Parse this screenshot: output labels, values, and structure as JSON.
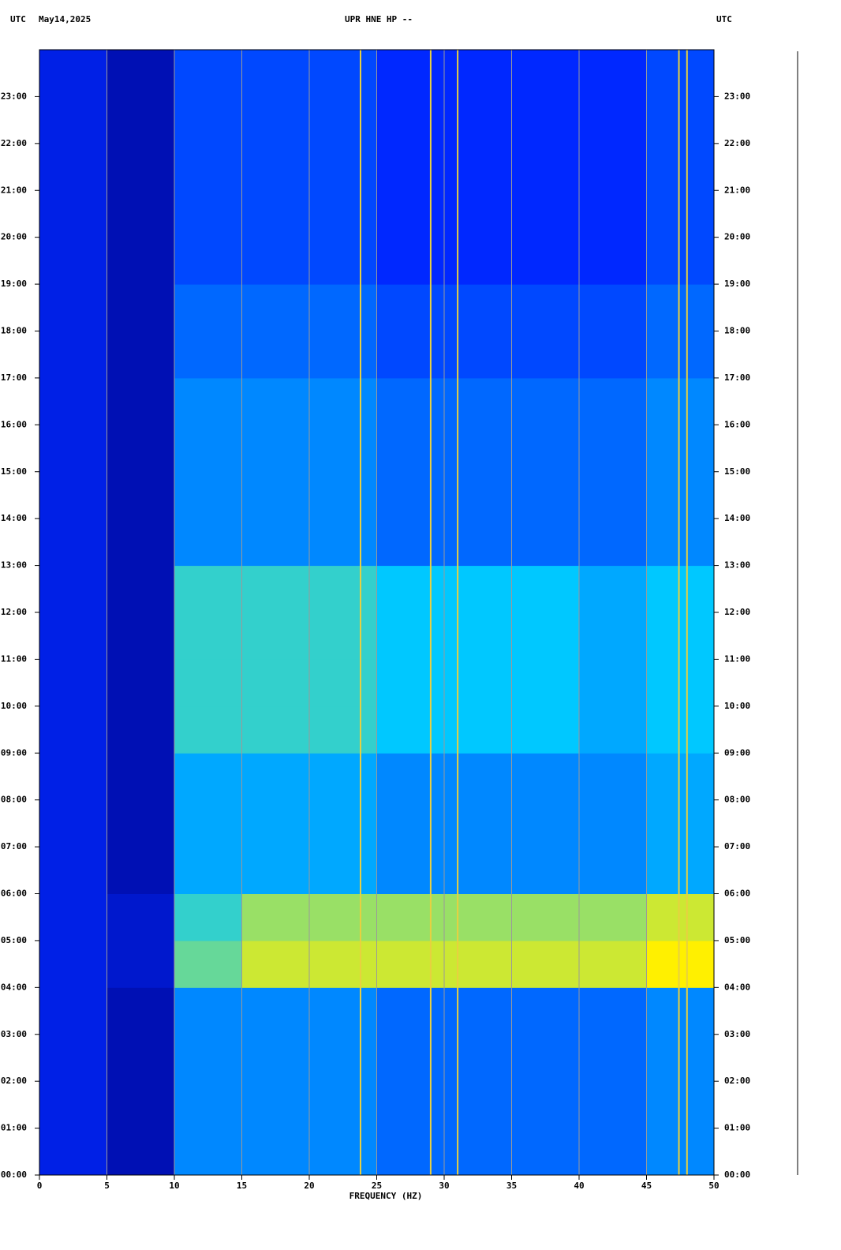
{
  "chart_data": {
    "type": "heatmap",
    "time_zone_left": "UTC",
    "date": "May14,2025",
    "title": "UPR HNE HP --",
    "time_zone_right": "UTC",
    "x_label": "FREQUENCY (HZ)",
    "xlim": [
      0,
      50
    ],
    "xticks": [
      0,
      5,
      10,
      15,
      20,
      25,
      30,
      35,
      40,
      45,
      50
    ],
    "ylim": [
      0,
      24
    ],
    "yticks": [
      {
        "value": 0,
        "label": "00:00"
      },
      {
        "value": 1,
        "label": "01:00"
      },
      {
        "value": 2,
        "label": "02:00"
      },
      {
        "value": 3,
        "label": "03:00"
      },
      {
        "value": 4,
        "label": "04:00"
      },
      {
        "value": 5,
        "label": "05:00"
      },
      {
        "value": 6,
        "label": "06:00"
      },
      {
        "value": 7,
        "label": "07:00"
      },
      {
        "value": 8,
        "label": "08:00"
      },
      {
        "value": 9,
        "label": "09:00"
      },
      {
        "value": 10,
        "label": "10:00"
      },
      {
        "value": 11,
        "label": "11:00"
      },
      {
        "value": 12,
        "label": "12:00"
      },
      {
        "value": 13,
        "label": "13:00"
      },
      {
        "value": 14,
        "label": "14:00"
      },
      {
        "value": 15,
        "label": "15:00"
      },
      {
        "value": 16,
        "label": "16:00"
      },
      {
        "value": 17,
        "label": "17:00"
      },
      {
        "value": 18,
        "label": "18:00"
      },
      {
        "value": 19,
        "label": "19:00"
      },
      {
        "value": 20,
        "label": "20:00"
      },
      {
        "value": 21,
        "label": "21:00"
      },
      {
        "value": 22,
        "label": "22:00"
      },
      {
        "value": 23,
        "label": "23:00"
      }
    ],
    "grid": true,
    "x_bins": [
      0,
      5,
      10,
      15,
      20,
      25,
      30,
      35,
      40,
      45,
      50
    ],
    "y_bins": [
      0,
      1,
      2,
      3,
      4,
      5,
      6,
      7,
      8,
      9,
      10,
      11,
      12,
      13,
      14,
      15,
      16,
      17,
      18,
      19,
      20,
      21,
      22,
      23,
      24
    ],
    "z": [
      [
        0.2,
        0.1,
        0.4,
        0.4,
        0.4,
        0.35,
        0.35,
        0.35,
        0.35,
        0.4
      ],
      [
        0.2,
        0.1,
        0.4,
        0.4,
        0.4,
        0.35,
        0.35,
        0.35,
        0.35,
        0.4
      ],
      [
        0.2,
        0.1,
        0.4,
        0.4,
        0.4,
        0.35,
        0.35,
        0.35,
        0.35,
        0.4
      ],
      [
        0.2,
        0.1,
        0.4,
        0.4,
        0.4,
        0.35,
        0.35,
        0.35,
        0.35,
        0.4
      ],
      [
        0.2,
        0.15,
        0.6,
        0.7,
        0.7,
        0.7,
        0.7,
        0.7,
        0.7,
        0.75
      ],
      [
        0.2,
        0.15,
        0.55,
        0.65,
        0.65,
        0.65,
        0.65,
        0.65,
        0.65,
        0.7
      ],
      [
        0.2,
        0.1,
        0.45,
        0.45,
        0.45,
        0.4,
        0.4,
        0.4,
        0.4,
        0.45
      ],
      [
        0.2,
        0.1,
        0.45,
        0.45,
        0.45,
        0.4,
        0.4,
        0.4,
        0.4,
        0.45
      ],
      [
        0.2,
        0.1,
        0.45,
        0.45,
        0.45,
        0.4,
        0.4,
        0.4,
        0.4,
        0.45
      ],
      [
        0.2,
        0.1,
        0.55,
        0.55,
        0.55,
        0.5,
        0.5,
        0.5,
        0.45,
        0.5
      ],
      [
        0.2,
        0.1,
        0.55,
        0.55,
        0.55,
        0.5,
        0.5,
        0.5,
        0.45,
        0.5
      ],
      [
        0.2,
        0.1,
        0.55,
        0.55,
        0.55,
        0.5,
        0.5,
        0.5,
        0.45,
        0.5
      ],
      [
        0.2,
        0.1,
        0.55,
        0.55,
        0.55,
        0.5,
        0.5,
        0.5,
        0.45,
        0.5
      ],
      [
        0.2,
        0.1,
        0.4,
        0.4,
        0.4,
        0.35,
        0.35,
        0.35,
        0.35,
        0.4
      ],
      [
        0.2,
        0.1,
        0.4,
        0.4,
        0.4,
        0.35,
        0.35,
        0.35,
        0.35,
        0.4
      ],
      [
        0.2,
        0.1,
        0.4,
        0.4,
        0.4,
        0.35,
        0.35,
        0.35,
        0.35,
        0.4
      ],
      [
        0.2,
        0.1,
        0.4,
        0.4,
        0.4,
        0.35,
        0.35,
        0.35,
        0.35,
        0.4
      ],
      [
        0.2,
        0.1,
        0.35,
        0.35,
        0.35,
        0.3,
        0.3,
        0.3,
        0.3,
        0.35
      ],
      [
        0.2,
        0.1,
        0.35,
        0.35,
        0.35,
        0.3,
        0.3,
        0.3,
        0.3,
        0.35
      ],
      [
        0.2,
        0.1,
        0.3,
        0.3,
        0.3,
        0.25,
        0.25,
        0.25,
        0.25,
        0.3
      ],
      [
        0.2,
        0.1,
        0.3,
        0.3,
        0.3,
        0.25,
        0.25,
        0.25,
        0.25,
        0.3
      ],
      [
        0.2,
        0.1,
        0.3,
        0.3,
        0.3,
        0.25,
        0.25,
        0.25,
        0.25,
        0.3
      ],
      [
        0.2,
        0.1,
        0.3,
        0.3,
        0.3,
        0.25,
        0.25,
        0.25,
        0.25,
        0.3
      ],
      [
        0.2,
        0.1,
        0.3,
        0.3,
        0.3,
        0.25,
        0.25,
        0.25,
        0.25,
        0.3
      ]
    ],
    "spectral_lines": [
      23.8,
      29.0,
      31.0,
      47.4,
      48.0
    ],
    "spectral_line_color": "#e8d040"
  }
}
